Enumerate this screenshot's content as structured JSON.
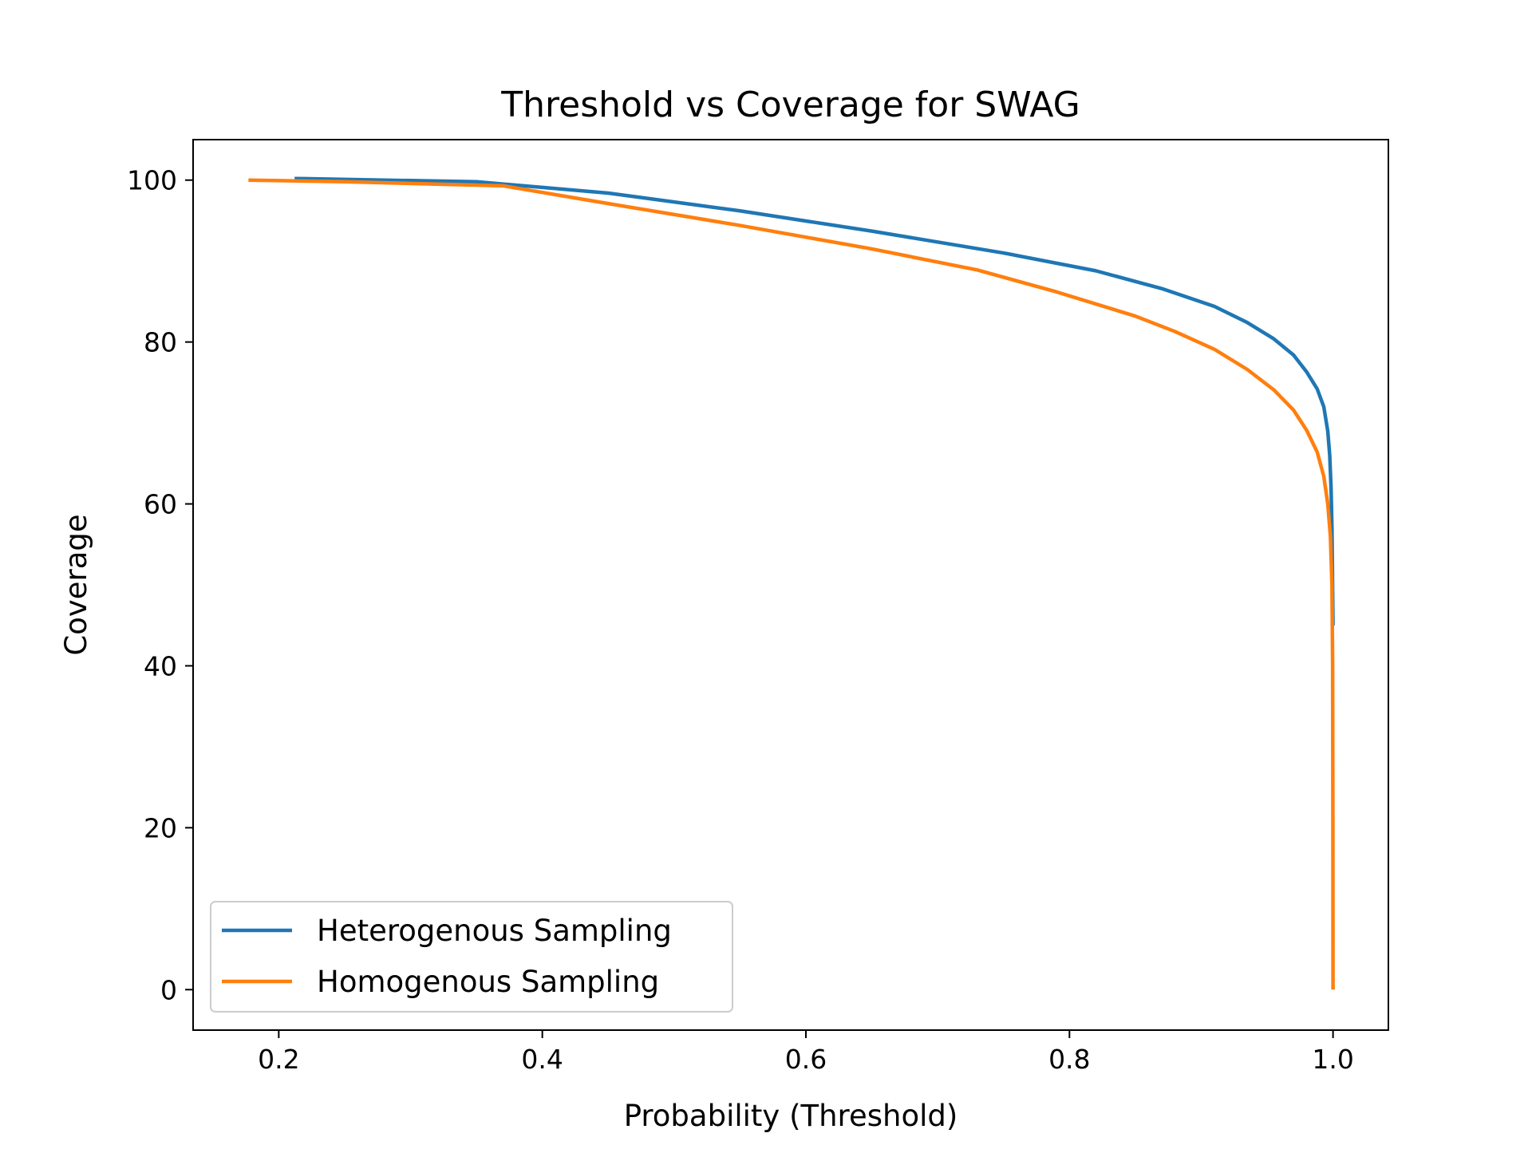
{
  "chart_data": {
    "type": "line",
    "title": "Threshold vs Coverage for SWAG",
    "xlabel": "Probability (Threshold)",
    "ylabel": "Coverage",
    "xlim": [
      0.135,
      1.042
    ],
    "ylim": [
      -5,
      105
    ],
    "xticks": [
      0.2,
      0.4,
      0.6,
      0.8,
      1.0
    ],
    "xtick_labels": [
      "0.2",
      "0.4",
      "0.6",
      "0.8",
      "1.0"
    ],
    "yticks": [
      0,
      20,
      40,
      60,
      80,
      100
    ],
    "ytick_labels": [
      "0",
      "20",
      "40",
      "60",
      "80",
      "100"
    ],
    "grid": false,
    "legend_position": "lower-left",
    "series": [
      {
        "name": "Heterogenous Sampling",
        "color": "#1f77b4",
        "points": [
          [
            0.212,
            100.2
          ],
          [
            0.35,
            99.8
          ],
          [
            0.45,
            98.4
          ],
          [
            0.55,
            96.2
          ],
          [
            0.65,
            93.7
          ],
          [
            0.75,
            91.0
          ],
          [
            0.82,
            88.8
          ],
          [
            0.87,
            86.6
          ],
          [
            0.91,
            84.4
          ],
          [
            0.935,
            82.4
          ],
          [
            0.955,
            80.4
          ],
          [
            0.97,
            78.4
          ],
          [
            0.98,
            76.3
          ],
          [
            0.988,
            74.2
          ],
          [
            0.993,
            72.0
          ],
          [
            0.996,
            69.0
          ],
          [
            0.9975,
            66.0
          ],
          [
            0.9985,
            62.0
          ],
          [
            0.9992,
            57.0
          ],
          [
            0.9996,
            51.0
          ],
          [
            1.0,
            45.0
          ]
        ]
      },
      {
        "name": "Homogenous Sampling",
        "color": "#ff7f0e",
        "points": [
          [
            0.177,
            100.0
          ],
          [
            0.25,
            99.8
          ],
          [
            0.37,
            99.3
          ],
          [
            0.45,
            97.1
          ],
          [
            0.55,
            94.4
          ],
          [
            0.65,
            91.5
          ],
          [
            0.73,
            88.9
          ],
          [
            0.79,
            86.2
          ],
          [
            0.85,
            83.2
          ],
          [
            0.88,
            81.3
          ],
          [
            0.91,
            79.1
          ],
          [
            0.935,
            76.6
          ],
          [
            0.955,
            74.1
          ],
          [
            0.97,
            71.6
          ],
          [
            0.98,
            69.1
          ],
          [
            0.988,
            66.4
          ],
          [
            0.993,
            63.4
          ],
          [
            0.996,
            60.0
          ],
          [
            0.998,
            56.0
          ],
          [
            0.9992,
            50.0
          ],
          [
            0.9997,
            40.0
          ],
          [
            0.9999,
            20.0
          ],
          [
            1.0,
            0.0
          ]
        ]
      }
    ]
  }
}
